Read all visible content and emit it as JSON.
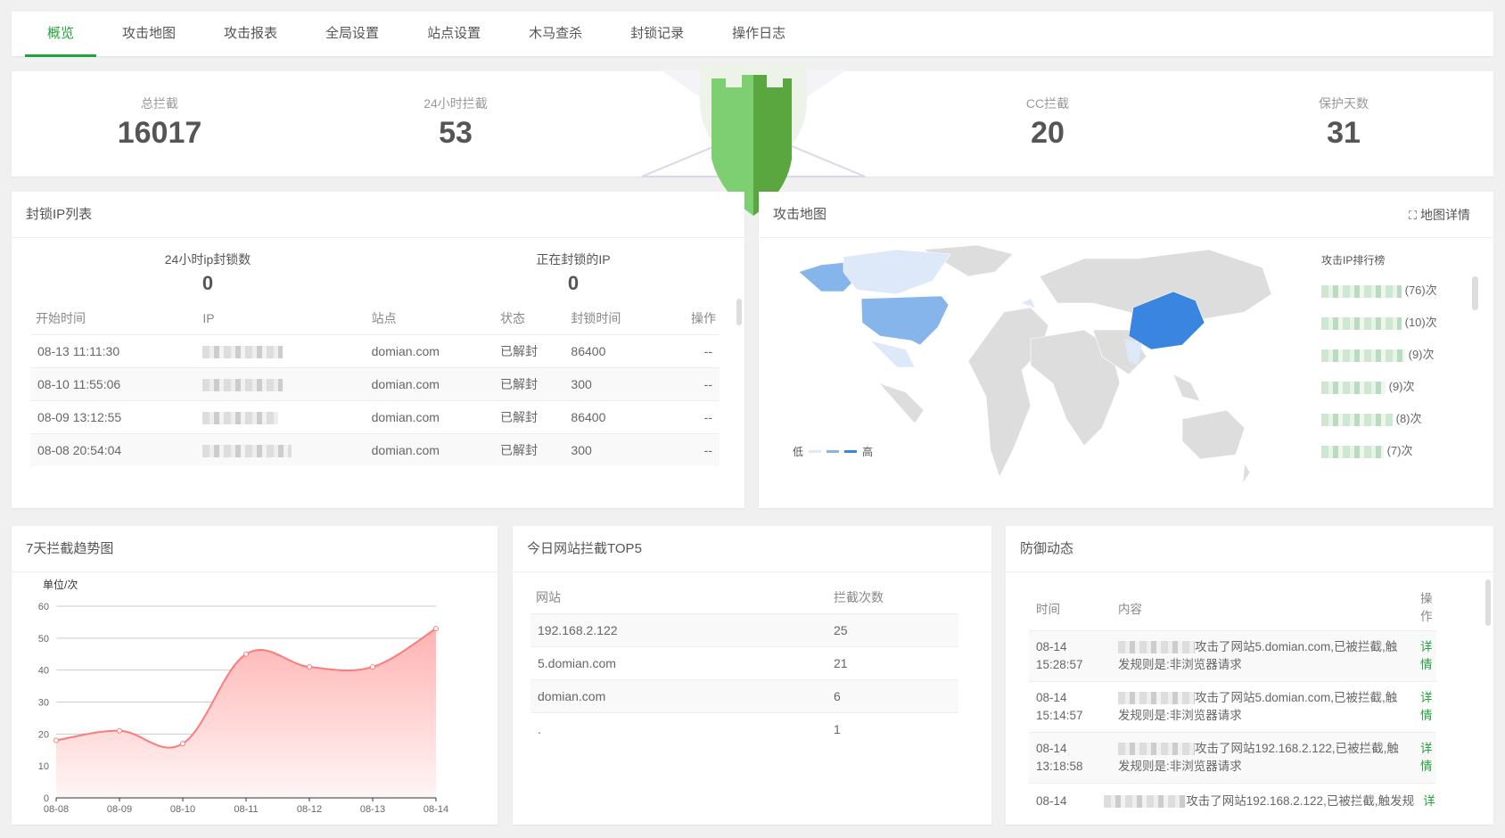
{
  "tabs": [
    "概览",
    "攻击地图",
    "攻击报表",
    "全局设置",
    "站点设置",
    "木马查杀",
    "封锁记录",
    "操作日志"
  ],
  "active_tab": "概览",
  "stats": [
    {
      "label": "总拦截",
      "value": "16017"
    },
    {
      "label": "24小时拦截",
      "value": "53"
    },
    {
      "label": "CC拦截",
      "value": "20"
    },
    {
      "label": "保护天数",
      "value": "31"
    }
  ],
  "blocked_ip": {
    "title": "封锁IP列表",
    "count24_label": "24小时ip封锁数",
    "count24": "0",
    "blocking_label": "正在封锁的IP",
    "blocking": "0",
    "columns": [
      "开始时间",
      "IP",
      "站点",
      "状态",
      "封锁时间",
      "操作"
    ],
    "rows": [
      {
        "time": "08-13 11:11:30",
        "site": "domian.com",
        "status": "已解封",
        "duration": "86400",
        "op": "--"
      },
      {
        "time": "08-10 11:55:06",
        "site": "domian.com",
        "status": "已解封",
        "duration": "300",
        "op": "--"
      },
      {
        "time": "08-09 13:12:55",
        "site": "domian.com",
        "status": "已解封",
        "duration": "86400",
        "op": "--"
      },
      {
        "time": "08-08 20:54:04",
        "site": "domian.com",
        "status": "已解封",
        "duration": "300",
        "op": "--"
      }
    ]
  },
  "attack_map": {
    "title": "攻击地图",
    "detail": "地图详情",
    "rank_title": "攻击IP排行榜",
    "legend_low": "低",
    "legend_high": "高",
    "ranking": [
      "(76)次",
      "(10)次",
      "(9)次",
      "(9)次",
      "(8)次",
      "(7)次"
    ],
    "colors": {
      "high": "#3a85e0",
      "mid": "#86b5ec",
      "low": "#dde9f8",
      "land": "#dddddd"
    }
  },
  "trend": {
    "title": "7天拦截趋势图"
  },
  "chart_data": {
    "type": "area",
    "ylabel": "单位/次",
    "categories": [
      "08-08",
      "08-09",
      "08-10",
      "08-11",
      "08-12",
      "08-13",
      "08-14"
    ],
    "values": [
      18,
      21,
      17,
      45,
      41,
      41,
      53
    ],
    "ylim": [
      0,
      60
    ],
    "yticks": [
      0,
      10,
      20,
      30,
      40,
      50,
      60
    ],
    "grid": true,
    "color": "#ff7a7a"
  },
  "top5": {
    "title": "今日网站拦截TOP5",
    "columns": [
      "网站",
      "拦截次数"
    ],
    "rows": [
      {
        "site": "192.168.2.122",
        "count": "25"
      },
      {
        "site": "5.domian.com",
        "count": "21"
      },
      {
        "site": "domian.com",
        "count": "6"
      },
      {
        "site": ".",
        "count": "1"
      }
    ]
  },
  "defense": {
    "title": "防御动态",
    "columns": [
      "时间",
      "内容",
      "操作"
    ],
    "rows": [
      {
        "date": "08-14",
        "time": "15:28:57",
        "content": "攻击了网站5.domian.com,已被拦截,触发规则是:非浏览器请求",
        "op": "详情"
      },
      {
        "date": "08-14",
        "time": "15:14:57",
        "content": "攻击了网站5.domian.com,已被拦截,触发规则是:非浏览器请求",
        "op": "详情"
      },
      {
        "date": "08-14",
        "time": "13:18:58",
        "content": "攻击了网站192.168.2.122,已被拦截,触发规则是:非浏览器请求",
        "op": "详情"
      },
      {
        "date": "08-14",
        "time": "",
        "content": "攻击了网站192.168.2.122,已被拦截,触发规",
        "op": "详"
      }
    ]
  }
}
